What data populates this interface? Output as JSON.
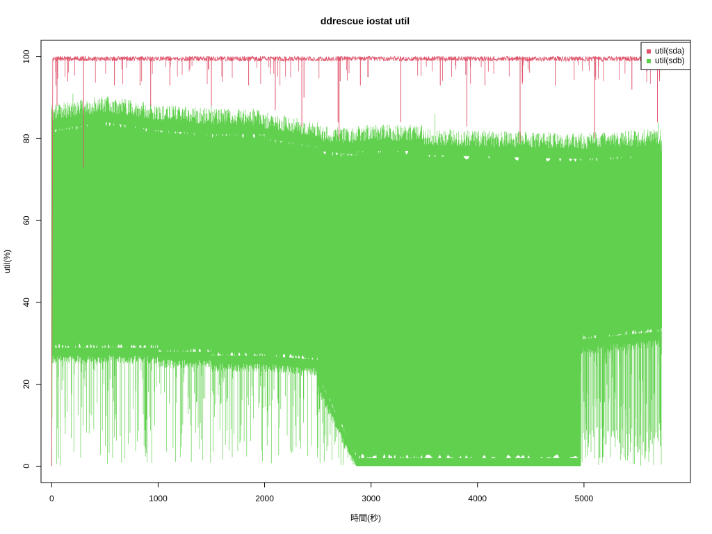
{
  "chart_data": {
    "type": "line",
    "title": "ddrescue iostat util",
    "xlabel": "時間(秒)",
    "ylabel": "util(%)",
    "xlim": [
      -100,
      6000
    ],
    "ylim": [
      -4,
      104
    ],
    "x_ticks": [
      0,
      1000,
      2000,
      3000,
      4000,
      5000
    ],
    "y_ticks": [
      0,
      20,
      40,
      60,
      80,
      100
    ],
    "x_tick_labels": [
      "0",
      "1000",
      "2000",
      "3000",
      "4000",
      "5000"
    ],
    "y_tick_labels": [
      "0",
      "20",
      "40",
      "60",
      "80",
      "100"
    ],
    "legend_position": "top-right",
    "series": [
      {
        "name": "util(sda)",
        "color": "#DF536B",
        "x": [
          0,
          10,
          50,
          100,
          200,
          500,
          1000,
          1500,
          2000,
          2500,
          3000,
          3500,
          4000,
          4400,
          4420,
          4450,
          4500,
          5000,
          5500,
          5700,
          5730
        ],
        "y": [
          0,
          98,
          100,
          100,
          99.5,
          99.5,
          99.5,
          99.5,
          99.5,
          99.5,
          99.5,
          99.5,
          99.5,
          99.5,
          79,
          99.5,
          99.5,
          99.5,
          99.5,
          95,
          99.5
        ],
        "dips": [
          {
            "x": 40,
            "y": 93
          },
          {
            "x": 50,
            "y": 88
          },
          {
            "x": 150,
            "y": 94
          },
          {
            "x": 300,
            "y": 73
          },
          {
            "x": 590,
            "y": 93
          },
          {
            "x": 830,
            "y": 93
          },
          {
            "x": 930,
            "y": 88
          },
          {
            "x": 1110,
            "y": 93
          },
          {
            "x": 1500,
            "y": 88
          },
          {
            "x": 1850,
            "y": 93
          },
          {
            "x": 2100,
            "y": 87
          },
          {
            "x": 2350,
            "y": 83
          },
          {
            "x": 2370,
            "y": 90
          },
          {
            "x": 2690,
            "y": 84
          },
          {
            "x": 2700,
            "y": 80
          },
          {
            "x": 2710,
            "y": 94
          },
          {
            "x": 2900,
            "y": 93
          },
          {
            "x": 3280,
            "y": 84
          },
          {
            "x": 3650,
            "y": 93
          },
          {
            "x": 3900,
            "y": 83
          },
          {
            "x": 4070,
            "y": 93
          },
          {
            "x": 4400,
            "y": 79
          },
          {
            "x": 4420,
            "y": 96
          },
          {
            "x": 4730,
            "y": 93
          },
          {
            "x": 5100,
            "y": 80
          },
          {
            "x": 5450,
            "y": 92
          },
          {
            "x": 5690,
            "y": 84
          },
          {
            "x": 5710,
            "y": 95
          }
        ]
      },
      {
        "name": "util(sdb)",
        "color": "#61D04F",
        "segments": [
          {
            "x": [
              0,
              500
            ],
            "top": [
              86,
              88
            ],
            "bottom": [
              27,
              27
            ]
          },
          {
            "x": [
              500,
              1000
            ],
            "top": [
              88,
              86
            ],
            "bottom": [
              27,
              27
            ]
          },
          {
            "x": [
              1000,
              1500
            ],
            "top": [
              86,
              85
            ],
            "bottom": [
              26,
              26
            ]
          },
          {
            "x": [
              1500,
              2000
            ],
            "top": [
              85,
              85
            ],
            "bottom": [
              25,
              25
            ]
          },
          {
            "x": [
              2000,
              2500
            ],
            "top": [
              84,
              82
            ],
            "bottom": [
              25,
              24
            ]
          },
          {
            "x": [
              2500,
              2870
            ],
            "top": [
              81,
              80
            ],
            "bottom": [
              20,
              0
            ]
          },
          {
            "x": [
              2870,
              3500
            ],
            "top": [
              81,
              81
            ],
            "bottom": [
              0,
              0
            ]
          },
          {
            "x": [
              3500,
              4970
            ],
            "top": [
              80,
              79
            ],
            "bottom": [
              0,
              0
            ]
          },
          {
            "x": [
              4970,
              5730
            ],
            "top": [
              79,
              80
            ],
            "bottom": [
              29,
              31
            ]
          }
        ],
        "sparse_low_region": {
          "x": [
            0,
            2870
          ],
          "min": 0
        },
        "sparse_tail_region": {
          "x": [
            4970,
            5730
          ],
          "top": 79,
          "min": 0
        }
      }
    ]
  }
}
